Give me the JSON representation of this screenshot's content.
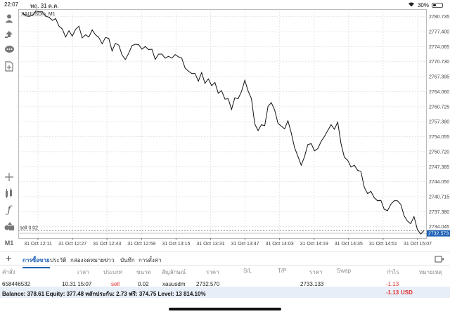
{
  "status_bar": {
    "time": "22:07",
    "date": "พฤ. 31 ต.ค.",
    "battery": "30%",
    "battery_level": 0.3
  },
  "chart": {
    "symbol_label": "XAUUSDm, M1",
    "order_line_label": "sell 0.02",
    "current_price_tag": "2732.573"
  },
  "chart_data": {
    "type": "line",
    "symbol": "XAUUSDm",
    "timeframe": "M1",
    "x_ticks": [
      "31 Oct 12:11",
      "31 Oct 12:27",
      "31 Oct 12:43",
      "31 Oct 12:59",
      "31 Oct 13:15",
      "31 Oct 13:31",
      "31 Oct 13:47",
      "31 Oct 14:03",
      "31 Oct 14:19",
      "31 Oct 14:35",
      "31 Oct 14:51",
      "31 Oct 15:07"
    ],
    "y_ticks": [
      "2780.735",
      "2777.400",
      "2774.065",
      "2770.730",
      "2767.395",
      "2764.060",
      "2760.725",
      "2757.390",
      "2754.055",
      "2750.720",
      "2747.385",
      "2744.050",
      "2740.715",
      "2737.380",
      "2734.045"
    ],
    "ylim": [
      2731.5,
      2782.4
    ],
    "y": [
      2781.6,
      2780.9,
      2780.8,
      2781.0,
      2782.0,
      2781.8,
      2781.8,
      2780.8,
      2780.6,
      2779.9,
      2780.3,
      2778.6,
      2778.0,
      2776.2,
      2777.6,
      2776.4,
      2777.9,
      2778.6,
      2776.0,
      2776.7,
      2776.2,
      2777.8,
      2776.7,
      2776.1,
      2774.7,
      2776.1,
      2775.9,
      2773.1,
      2774.8,
      2774.4,
      2772.2,
      2771.2,
      2772.6,
      2774.3,
      2774.6,
      2774.5,
      2773.5,
      2774.1,
      2773.4,
      2773.5,
      2771.2,
      2772.4,
      2772.4,
      2771.5,
      2771.9,
      2771.5,
      2772.3,
      2771.8,
      2771.5,
      2769.3,
      2768.6,
      2768.1,
      2768.1,
      2766.4,
      2768.3,
      2765.9,
      2766.9,
      2765.4,
      2766.1,
      2763.7,
      2764.3,
      2762.4,
      2762.5,
      2760.1,
      2762.7,
      2762.5,
      2764.1,
      2766.6,
      2764.2,
      2762.5,
      2756.9,
      2755.4,
      2756.7,
      2756.5,
      2760.8,
      2761.6,
      2760.0,
      2757.0,
      2756.4,
      2755.8,
      2757.6,
      2754.9,
      2751.6,
      2749.7,
      2747.7,
      2749.6,
      2752.3,
      2752.5,
      2750.9,
      2751.4,
      2753.0,
      2754.1,
      2755.4,
      2756.7,
      2755.7,
      2757.3,
      2752.5,
      2749.5,
      2748.8,
      2747.3,
      2747.7,
      2746.6,
      2746.3,
      2742.8,
      2741.4,
      2741.9,
      2740.5,
      2739.8,
      2739.9,
      2737.9,
      2737.6,
      2739.0,
      2739.8,
      2739.8,
      2739.0,
      2736.5,
      2735.3,
      2734.7,
      2736.3,
      2733.4,
      2732.4,
      2733.2
    ],
    "xlabel": "",
    "ylabel": "",
    "grid": true,
    "order_line": {
      "label": "sell 0.02",
      "price": 2733.133
    },
    "current_price": 2732.573,
    "line_color": "#111111",
    "price_tag_color": "#1c5fb5"
  },
  "sidebar": {
    "icons": [
      "account-icon",
      "trade-icon",
      "chat-icon",
      "new-document-icon",
      "crosshair-icon",
      "indicators-icon",
      "function-icon",
      "objects-icon",
      "timeframe-icon"
    ],
    "timeframe_label": "M1"
  },
  "tabs": {
    "items": [
      "การซื้อขาย",
      "ประวัติ",
      "กล่องจดหมาย",
      "ข่าว",
      "บันทึก",
      "การตั้งค่า"
    ],
    "active": "การซื้อขาย"
  },
  "trade_table": {
    "headers": [
      "คำสั่ง",
      "เวลา",
      "ประเภท",
      "ขนาด",
      "สัญลักษณ์",
      "ราคา",
      "S/L",
      "T/P",
      "ราคา",
      "Swap",
      "กำไร",
      "หมายเหตุ"
    ],
    "row": {
      "order": "658446532",
      "time": "10.31 15:07",
      "type": "sell",
      "volume": "0.02",
      "symbol": "xauusdm",
      "open_price": "2732.570",
      "sl": "",
      "tp": "",
      "current_price": "2733.133",
      "swap": "",
      "profit": "-1.13",
      "comment": ""
    }
  },
  "balance_bar": {
    "text": "Balance: 378.61 Equity: 377.48 หลักประกัน: 2.73 ฟรี: 374.75 Level: 13 814.10%",
    "profit": "-1.13",
    "currency": "USD"
  },
  "colors": {
    "accent": "#1c5fb5",
    "negative": "#e03030",
    "balance_bg": "#e8eef8"
  }
}
